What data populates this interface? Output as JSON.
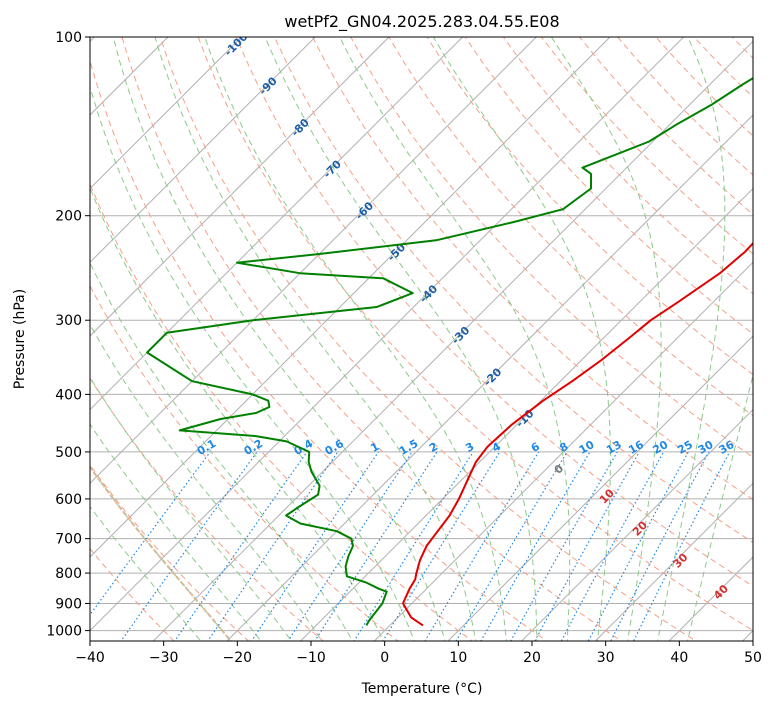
{
  "chart_data": {
    "type": "line",
    "title": "wetPf2_GN04.2025.283.04.55.E08",
    "xlabel": "Temperature (°C)",
    "ylabel": "Pressure (hPa)",
    "xlim": [
      -40,
      50
    ],
    "ylim": [
      1050,
      100
    ],
    "y_scale": "log",
    "x_ticks": [
      -40,
      -30,
      -20,
      -10,
      0,
      10,
      20,
      30,
      40,
      50
    ],
    "x_tick_labels": [
      "−40",
      "−30",
      "−20",
      "−10",
      "0",
      "10",
      "20",
      "30",
      "40",
      "50"
    ],
    "y_ticks": [
      1000,
      900,
      800,
      700,
      600,
      500,
      400,
      300,
      200,
      100
    ],
    "y_tick_labels": [
      "1000",
      "900",
      "800",
      "700",
      "600",
      "500",
      "400",
      "300",
      "200",
      "100"
    ],
    "grid": true,
    "skew": true,
    "series": [
      {
        "kind": "temperature",
        "color": "#e00000",
        "points": [
          [
            980,
            4.5
          ],
          [
            950,
            1.8
          ],
          [
            900,
            -1.2
          ],
          [
            850,
            -2.3
          ],
          [
            820,
            -2.8
          ],
          [
            800,
            -3.5
          ],
          [
            760,
            -4.8
          ],
          [
            720,
            -5.8
          ],
          [
            680,
            -6.3
          ],
          [
            640,
            -6.8
          ],
          [
            600,
            -7.8
          ],
          [
            560,
            -9.1
          ],
          [
            520,
            -10.5
          ],
          [
            490,
            -11.0
          ],
          [
            450,
            -10.7
          ],
          [
            410,
            -9.7
          ],
          [
            380,
            -8.4
          ],
          [
            350,
            -7.3
          ],
          [
            320,
            -6.5
          ],
          [
            300,
            -6.0
          ],
          [
            280,
            -4.8
          ],
          [
            250,
            -3.0
          ],
          [
            230,
            -2.5
          ],
          [
            210,
            -2.7
          ],
          [
            200,
            -2.8
          ],
          [
            180,
            0.4
          ],
          [
            160,
            4.6
          ],
          [
            150,
            6.3
          ],
          [
            140,
            8.0
          ],
          [
            130,
            9.8
          ],
          [
            120,
            11.3
          ],
          [
            110,
            13.7
          ],
          [
            100,
            15.5
          ]
        ]
      },
      {
        "kind": "dewpoint",
        "color": "#008000",
        "points": [
          [
            980,
            -3.2
          ],
          [
            960,
            -3.5
          ],
          [
            900,
            -4.0
          ],
          [
            880,
            -4.5
          ],
          [
            860,
            -5.0
          ],
          [
            850,
            -6.5
          ],
          [
            830,
            -9.0
          ],
          [
            810,
            -12.5
          ],
          [
            780,
            -14.0
          ],
          [
            750,
            -15.0
          ],
          [
            720,
            -15.8
          ],
          [
            700,
            -17.0
          ],
          [
            680,
            -20.0
          ],
          [
            660,
            -26.0
          ],
          [
            640,
            -29.0
          ],
          [
            620,
            -28.5
          ],
          [
            590,
            -27.5
          ],
          [
            570,
            -28.5
          ],
          [
            540,
            -31.5
          ],
          [
            520,
            -33.2
          ],
          [
            500,
            -34.5
          ],
          [
            480,
            -39.0
          ],
          [
            470,
            -44.0
          ],
          [
            460,
            -55.0
          ],
          [
            440,
            -51.0
          ],
          [
            430,
            -47.0
          ],
          [
            420,
            -46.0
          ],
          [
            410,
            -47.0
          ],
          [
            400,
            -50.0
          ],
          [
            380,
            -60.0
          ],
          [
            340,
            -70.0
          ],
          [
            315,
            -70.0
          ],
          [
            300,
            -60.0
          ],
          [
            285,
            -45.0
          ],
          [
            270,
            -42.0
          ],
          [
            255,
            -48.0
          ],
          [
            250,
            -60.0
          ],
          [
            240,
            -70.0
          ],
          [
            232,
            -60.0
          ],
          [
            220,
            -46.0
          ],
          [
            205,
            -38.0
          ],
          [
            195,
            -33.0
          ],
          [
            180,
            -32.0
          ],
          [
            170,
            -34.0
          ],
          [
            166,
            -36.0
          ],
          [
            160,
            -34.0
          ],
          [
            150,
            -30.5
          ],
          [
            140,
            -29.0
          ],
          [
            130,
            -27.0
          ],
          [
            120,
            -25.5
          ],
          [
            110,
            -23.5
          ],
          [
            105,
            -21.5
          ],
          [
            100,
            -19.5
          ]
        ]
      }
    ],
    "mixing_ratio_labels": [
      "0.1",
      "0.2",
      "0.4",
      "0.6",
      "1",
      "1.5",
      "2",
      "3",
      "4",
      "6",
      "8",
      "10",
      "13",
      "16",
      "20",
      "25",
      "30",
      "36"
    ],
    "mixing_ratio_values": [
      0.1,
      0.2,
      0.4,
      0.6,
      1,
      1.5,
      2,
      3,
      4,
      6,
      8,
      10,
      13,
      16,
      20,
      25,
      30,
      36
    ],
    "dry_adiabat_labels": [
      "-100",
      "-90",
      "-80",
      "-70",
      "-60",
      "-50",
      "-40",
      "-30",
      "-20",
      "-10"
    ],
    "dry_adiabat_values": [
      -100,
      -90,
      -80,
      -70,
      -60,
      -50,
      -40,
      -30,
      -20,
      -10
    ],
    "moist_adiabat_labels": [
      "0",
      "10",
      "20",
      "30",
      "40"
    ],
    "moist_adiabat_values": [
      0,
      10,
      20,
      30,
      40
    ],
    "colors": {
      "isotherm": "#b0b0b0",
      "isobar": "#b0b0b0",
      "dry_adiabat": "#f5a088",
      "moist_adiabat": "#8cc98c",
      "mixing_ratio": "#1e88e5",
      "adiabat_label": "#1f5fa8",
      "moist_label": "#d32f2f",
      "zero_label": "#777777",
      "shading": "#d9b48f"
    }
  }
}
